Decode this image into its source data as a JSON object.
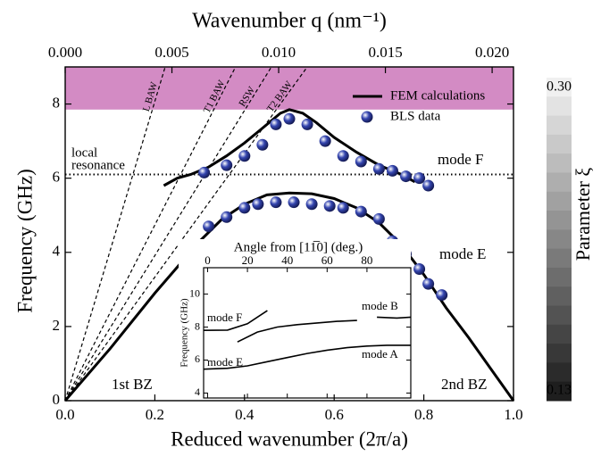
{
  "chart_data": [
    {
      "type": "line",
      "x2label": "Wavenumber q (nm⁻¹)",
      "xlabel": "Reduced wavenumber (2π/a)",
      "ylabel": "Frequency (GHz)",
      "xlim": [
        0,
        1
      ],
      "xticks": [
        {
          "value": 0,
          "label": "0.0"
        },
        0.2,
        0.4,
        0.6,
        0.8,
        {
          "value": 1,
          "label": "1.0"
        }
      ],
      "x2lim": [
        0,
        0.021
      ],
      "x2ticks": [
        {
          "value": 0,
          "label": "0.000"
        },
        {
          "value": 0.005,
          "label": "0.005"
        },
        {
          "value": 0.01,
          "label": "0.010"
        },
        {
          "value": 0.015,
          "label": "0.015"
        },
        {
          "value": 0.02,
          "label": "0.020"
        }
      ],
      "ylim": [
        0,
        9
      ],
      "yticks": [
        0,
        2,
        4,
        6,
        8
      ],
      "band": {
        "ylim": [
          7.85,
          9
        ],
        "color": "#d38bc4"
      },
      "series": [
        {
          "name": "FEM calculations",
          "color": "#000000",
          "curves": [
            {
              "x": [
                0,
                0.1,
                0.2,
                0.3,
                0.35,
                0.4,
                0.45,
                0.5,
                0.55,
                0.6,
                0.65,
                0.7,
                0.75,
                0.8,
                0.85,
                0.9,
                0.95,
                1.0
              ],
              "y": [
                0,
                1.4,
                2.9,
                4.3,
                4.9,
                5.3,
                5.55,
                5.6,
                5.58,
                5.45,
                5.2,
                4.8,
                4.2,
                3.4,
                2.5,
                1.7,
                0.85,
                0
              ]
            },
            {
              "x": [
                0.22,
                0.25,
                0.28,
                0.32,
                0.36,
                0.4,
                0.44,
                0.48,
                0.5,
                0.53,
                0.56,
                0.6,
                0.65,
                0.7,
                0.75,
                0.78
              ],
              "y": [
                5.8,
                6.0,
                6.1,
                6.3,
                6.6,
                6.95,
                7.35,
                7.75,
                7.85,
                7.75,
                7.5,
                7.1,
                6.7,
                6.35,
                6.1,
                5.9
              ]
            }
          ]
        },
        {
          "name": "BLS data",
          "color": "#3546b0",
          "x": [
            0.31,
            0.36,
            0.4,
            0.44,
            0.47,
            0.5,
            0.54,
            0.58,
            0.62,
            0.66,
            0.7,
            0.73,
            0.76,
            0.79,
            0.81,
            0.32,
            0.36,
            0.4,
            0.43,
            0.47,
            0.51,
            0.55,
            0.59,
            0.62,
            0.66,
            0.7,
            0.73,
            0.76,
            0.79,
            0.81,
            0.84
          ],
          "values": [
            6.15,
            6.35,
            6.6,
            6.9,
            7.45,
            7.6,
            7.45,
            7.0,
            6.6,
            6.45,
            6.25,
            6.2,
            6.05,
            6.0,
            5.8,
            4.7,
            4.95,
            5.2,
            5.3,
            5.35,
            5.35,
            5.3,
            5.25,
            5.2,
            5.1,
            4.9,
            4.3,
            3.95,
            3.55,
            3.15,
            2.85
          ]
        }
      ],
      "reference_lines": [
        {
          "label": "L BAW",
          "x": [
            0,
            0.223
          ],
          "y": [
            0,
            9
          ]
        },
        {
          "label": "T1 BAW",
          "x": [
            0,
            0.38
          ],
          "y": [
            0,
            9
          ]
        },
        {
          "label": "RSW",
          "x": [
            0,
            0.46
          ],
          "y": [
            0,
            9
          ]
        },
        {
          "label": "T2 BAW",
          "x": [
            0,
            0.54
          ],
          "y": [
            0,
            9
          ]
        }
      ],
      "hline": {
        "y": 6.1,
        "label": [
          "local",
          "resonance"
        ]
      },
      "annotations": [
        "mode F",
        "mode E",
        "1st BZ",
        "2nd BZ"
      ],
      "legend": "upper right",
      "colorbar": {
        "label": "Parameter ξ",
        "lim": [
          0.13,
          0.3
        ],
        "ticks": [
          {
            "value": 0.3,
            "label": "0.30"
          },
          {
            "value": 0.13,
            "label": "0.13"
          }
        ]
      }
    },
    {
      "type": "line",
      "xlabel": "Angle from [11̅0] (deg.)",
      "ylabel": "Frequency (GHz)",
      "xlim": [
        -2,
        102
      ],
      "xticks": [
        0,
        20,
        40,
        60,
        80
      ],
      "ylim": [
        3.7,
        11.6
      ],
      "yticks": [
        4,
        6,
        8,
        10
      ],
      "series": [
        {
          "color": "#000000",
          "curves": [
            {
              "x": [
                -2,
                10,
                20,
                30,
                40,
                50,
                60,
                70,
                80,
                90,
                102
              ],
              "y": [
                5.45,
                5.5,
                5.65,
                5.9,
                6.15,
                6.4,
                6.6,
                6.75,
                6.85,
                6.9,
                6.9
              ]
            },
            {
              "x": [
                15,
                25,
                35,
                45,
                55,
                65,
                75
              ],
              "y": [
                7.1,
                7.7,
                8.0,
                8.15,
                8.25,
                8.35,
                8.4
              ]
            },
            {
              "x": [
                -2,
                10,
                20,
                25,
                30
              ],
              "y": [
                7.8,
                7.82,
                8.2,
                8.6,
                9.0
              ]
            },
            {
              "x": [
                85,
                95,
                102
              ],
              "y": [
                8.6,
                8.55,
                8.6
              ]
            }
          ]
        }
      ],
      "annotations": [
        "mode F",
        "mode E",
        "mode B",
        "mode A"
      ]
    }
  ]
}
